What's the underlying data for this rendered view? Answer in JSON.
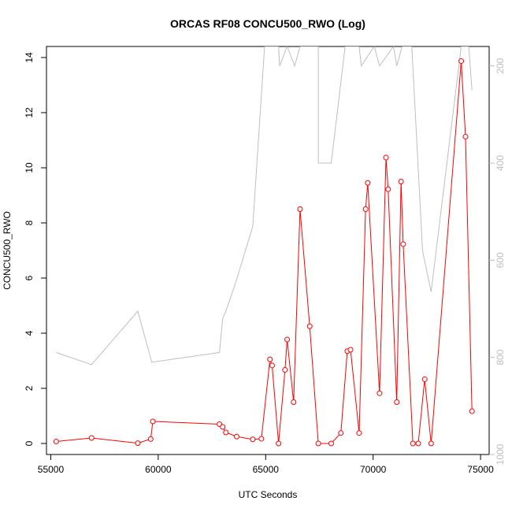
{
  "chart_data": {
    "type": "line",
    "title": "ORCAS RF08 CONCU500_RWO (Log)",
    "xlabel": "UTC Seconds",
    "ylabel": "CONCU500_RWO",
    "xlim": [
      54800,
      75400
    ],
    "ylim": [
      -0.4,
      14.4
    ],
    "xticks": [
      55000,
      60000,
      65000,
      70000,
      75000
    ],
    "yticks": [
      0,
      2,
      4,
      6,
      8,
      10,
      12,
      14
    ],
    "right_axis": {
      "ticks": [
        200,
        400,
        600,
        800,
        1000
      ],
      "range_top": 160,
      "range_bottom": 1000,
      "color": "#bebebe"
    },
    "series": [
      {
        "role": "concentration",
        "color": "#ff0000",
        "marker": "open-circle",
        "points": [
          [
            55250,
            0.07
          ],
          [
            56900,
            0.2
          ],
          [
            59050,
            0.01
          ],
          [
            59650,
            0.16
          ],
          [
            59750,
            0.8
          ],
          [
            62850,
            0.7
          ],
          [
            63000,
            0.6
          ],
          [
            63150,
            0.4
          ],
          [
            63650,
            0.25
          ],
          [
            64400,
            0.15
          ],
          [
            64800,
            0.17
          ],
          [
            65200,
            3.05
          ],
          [
            65300,
            2.83
          ],
          [
            65600,
            0.0
          ],
          [
            65900,
            2.67
          ],
          [
            66000,
            3.77
          ],
          [
            66300,
            1.5
          ],
          [
            66600,
            8.5
          ],
          [
            67050,
            4.25
          ],
          [
            67450,
            0.0
          ],
          [
            68050,
            0.0
          ],
          [
            68500,
            0.38
          ],
          [
            68800,
            3.35
          ],
          [
            68950,
            3.4
          ],
          [
            69350,
            0.38
          ],
          [
            69650,
            8.5
          ],
          [
            69750,
            9.45
          ],
          [
            70300,
            1.82
          ],
          [
            70600,
            10.37
          ],
          [
            70700,
            9.22
          ],
          [
            71100,
            1.5
          ],
          [
            71300,
            9.5
          ],
          [
            71400,
            7.23
          ],
          [
            71850,
            0.0
          ],
          [
            72100,
            0.0
          ],
          [
            72400,
            2.33
          ],
          [
            72700,
            0.0
          ],
          [
            74100,
            13.87
          ],
          [
            74300,
            11.13
          ],
          [
            74600,
            1.17
          ]
        ]
      },
      {
        "role": "altitude",
        "color": "#bebebe",
        "points": [
          [
            55250,
            790
          ],
          [
            56900,
            815
          ],
          [
            59050,
            705
          ],
          [
            59700,
            810
          ],
          [
            62850,
            790
          ],
          [
            63000,
            720
          ],
          [
            63150,
            705
          ],
          [
            63650,
            640
          ],
          [
            64400,
            530
          ],
          [
            64950,
            160
          ],
          [
            65600,
            160
          ],
          [
            65650,
            200
          ],
          [
            66000,
            160
          ],
          [
            66350,
            200
          ],
          [
            66600,
            160
          ],
          [
            67450,
            160
          ],
          [
            67450,
            400
          ],
          [
            68050,
            400
          ],
          [
            68700,
            160
          ],
          [
            69350,
            160
          ],
          [
            69450,
            200
          ],
          [
            70050,
            160
          ],
          [
            70300,
            200
          ],
          [
            70950,
            160
          ],
          [
            71100,
            200
          ],
          [
            71350,
            160
          ],
          [
            71800,
            160
          ],
          [
            72300,
            580
          ],
          [
            72700,
            665
          ],
          [
            74100,
            160
          ],
          [
            74450,
            160
          ],
          [
            74600,
            250
          ]
        ]
      }
    ],
    "grid": false,
    "legend": "none"
  }
}
